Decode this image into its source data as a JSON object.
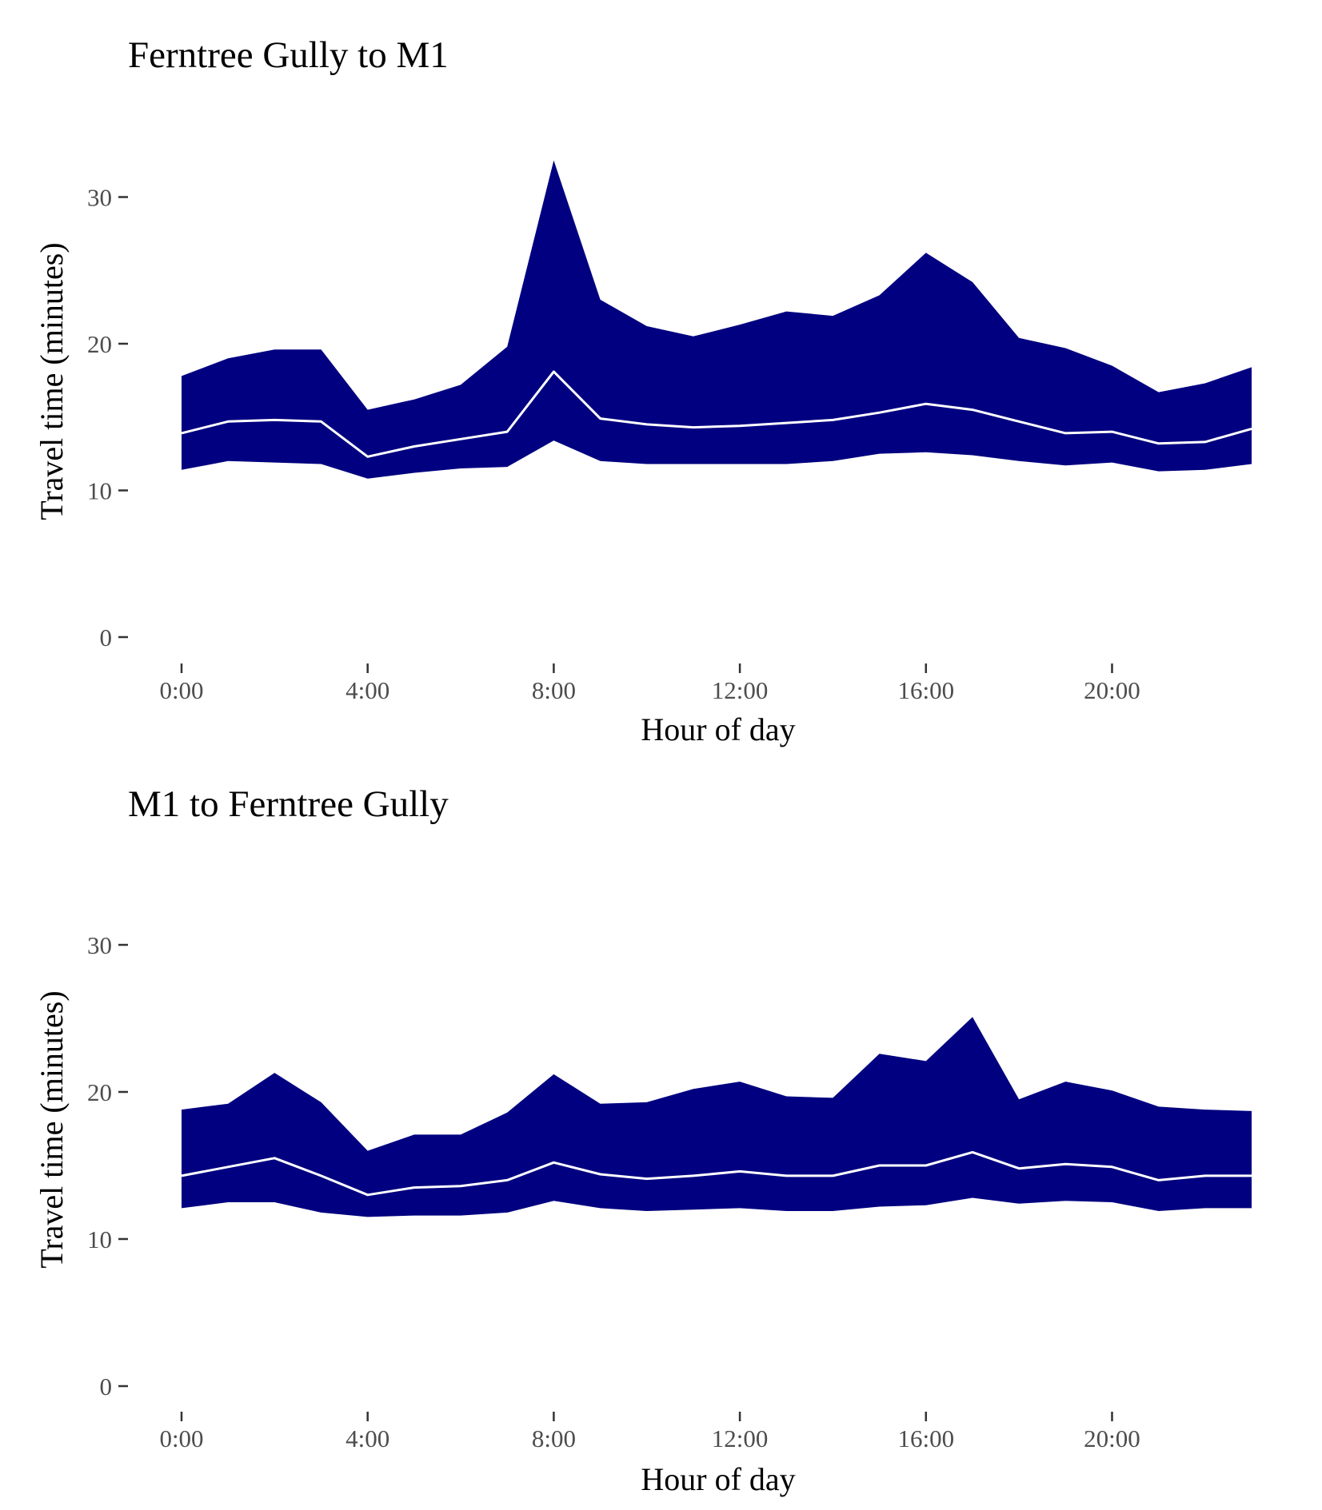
{
  "chart_data": [
    {
      "type": "area",
      "title": "Ferntree Gully to M1",
      "xlabel": "Hour of day",
      "ylabel": "Travel time (minutes)",
      "xlim": [
        0,
        23
      ],
      "ylim": [
        0,
        33
      ],
      "x_ticks": [
        0,
        4,
        8,
        12,
        16,
        20
      ],
      "x_tick_labels": [
        "0:00",
        "4:00",
        "8:00",
        "12:00",
        "16:00",
        "20:00"
      ],
      "y_ticks": [
        0,
        10,
        20,
        30
      ],
      "y_tick_labels": [
        "0",
        "10",
        "20",
        "30"
      ],
      "grid": false,
      "band_color": "#000080",
      "line_color": "#ffffff",
      "x": [
        0,
        1,
        2,
        3,
        4,
        5,
        6,
        7,
        8,
        9,
        10,
        11,
        12,
        13,
        14,
        15,
        16,
        17,
        18,
        19,
        20,
        21,
        22,
        23
      ],
      "band_lower": [
        11.4,
        12.0,
        11.9,
        11.8,
        10.8,
        11.2,
        11.5,
        11.6,
        13.4,
        12.0,
        11.8,
        11.8,
        11.8,
        11.8,
        12.0,
        12.5,
        12.6,
        12.4,
        12.0,
        11.7,
        11.9,
        11.3,
        11.4,
        11.8
      ],
      "band_upper": [
        17.8,
        19.0,
        19.6,
        19.6,
        15.5,
        16.2,
        17.2,
        19.8,
        32.5,
        23.0,
        21.2,
        20.5,
        21.3,
        22.2,
        21.9,
        23.3,
        26.2,
        24.2,
        20.4,
        19.7,
        18.5,
        16.7,
        17.3,
        18.4
      ],
      "median": [
        13.9,
        14.7,
        14.8,
        14.7,
        12.3,
        13.0,
        13.5,
        14.0,
        18.1,
        14.9,
        14.5,
        14.3,
        14.4,
        14.6,
        14.8,
        15.3,
        15.9,
        15.5,
        14.7,
        13.9,
        14.0,
        13.2,
        13.3,
        14.2
      ]
    },
    {
      "type": "area",
      "title": "M1 to Ferntree Gully",
      "xlabel": "Hour of day",
      "ylabel": "Travel time (minutes)",
      "xlim": [
        0,
        23
      ],
      "ylim": [
        0,
        33
      ],
      "x_ticks": [
        0,
        4,
        8,
        12,
        16,
        20
      ],
      "x_tick_labels": [
        "0:00",
        "4:00",
        "8:00",
        "12:00",
        "16:00",
        "20:00"
      ],
      "y_ticks": [
        0,
        10,
        20,
        30
      ],
      "y_tick_labels": [
        "0",
        "10",
        "20",
        "30"
      ],
      "grid": false,
      "band_color": "#000080",
      "line_color": "#ffffff",
      "x": [
        0,
        1,
        2,
        3,
        4,
        5,
        6,
        7,
        8,
        9,
        10,
        11,
        12,
        13,
        14,
        15,
        16,
        17,
        18,
        19,
        20,
        21,
        22,
        23
      ],
      "band_lower": [
        12.1,
        12.5,
        12.5,
        11.8,
        11.5,
        11.6,
        11.6,
        11.8,
        12.6,
        12.1,
        11.9,
        12.0,
        12.1,
        11.9,
        11.9,
        12.2,
        12.3,
        12.8,
        12.4,
        12.6,
        12.5,
        11.9,
        12.1,
        12.1
      ],
      "band_upper": [
        18.8,
        19.2,
        21.3,
        19.3,
        16.0,
        17.1,
        17.1,
        18.6,
        21.2,
        19.2,
        19.3,
        20.2,
        20.7,
        19.7,
        19.6,
        22.6,
        22.1,
        25.1,
        19.5,
        20.7,
        20.1,
        19.0,
        18.8,
        18.7
      ],
      "median": [
        14.3,
        14.9,
        15.5,
        14.3,
        13.0,
        13.5,
        13.6,
        14.0,
        15.2,
        14.4,
        14.1,
        14.3,
        14.6,
        14.3,
        14.3,
        15.0,
        15.0,
        15.9,
        14.8,
        15.1,
        14.9,
        14.0,
        14.3,
        14.3
      ]
    }
  ]
}
